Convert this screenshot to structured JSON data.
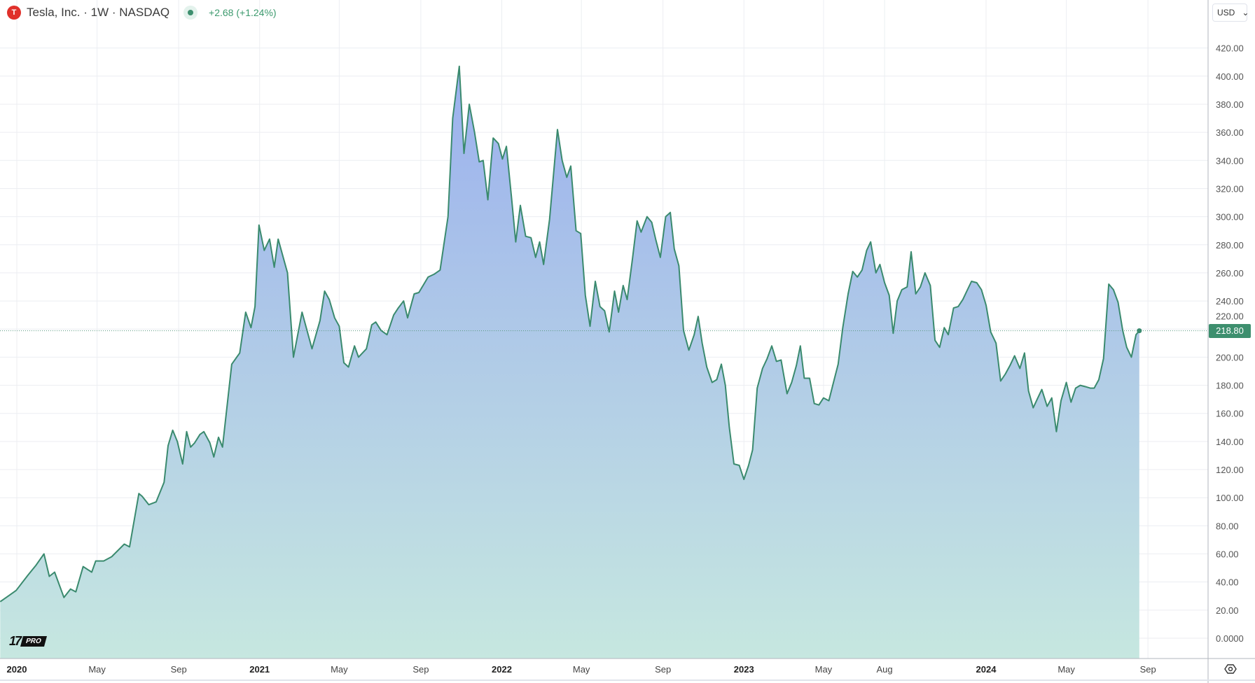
{
  "header": {
    "logo_letter": "T",
    "title": "Tesla, Inc. · 1W · NASDAQ",
    "change": "+2.68 (+1.24%)"
  },
  "currency": {
    "label": "USD",
    "chevron": "⌄"
  },
  "logo": {
    "tv": "17",
    "pro": "PRO"
  },
  "last_price": "218.80",
  "colors": {
    "line": "#3a8a6e",
    "fill_top": "#9bb0ee",
    "fill_bottom": "#c6e7e0",
    "badge": "#3d8f6e",
    "logo": "#e0302a",
    "change": "#3d9a6e"
  },
  "icons": {
    "logo": "tesla-logo-icon",
    "status": "market-status-dot-icon",
    "settings": "settings-icon"
  },
  "chart_data": {
    "type": "area",
    "title": "Tesla, Inc. · 1W · NASDAQ",
    "ylim": [
      -10,
      430
    ],
    "grid": true,
    "legend": "none",
    "y_ticks": [
      "420.00",
      "400.00",
      "380.00",
      "360.00",
      "340.00",
      "320.00",
      "300.00",
      "280.00",
      "260.00",
      "240.00",
      "220.00",
      "200.00",
      "180.00",
      "160.00",
      "140.00",
      "120.00",
      "100.00",
      "80.00",
      "60.00",
      "40.00",
      "20.00",
      "0.0000"
    ],
    "x_ticks": [
      {
        "label": "2020",
        "date": "2020-01-01",
        "bold": true
      },
      {
        "label": "May",
        "date": "2020-05-01"
      },
      {
        "label": "Sep",
        "date": "2020-09-01"
      },
      {
        "label": "2021",
        "date": "2021-01-01",
        "bold": true
      },
      {
        "label": "May",
        "date": "2021-05-01"
      },
      {
        "label": "Sep",
        "date": "2021-09-01"
      },
      {
        "label": "2022",
        "date": "2022-01-01",
        "bold": true
      },
      {
        "label": "May",
        "date": "2022-05-01"
      },
      {
        "label": "Sep",
        "date": "2022-09-01"
      },
      {
        "label": "2023",
        "date": "2023-01-01",
        "bold": true
      },
      {
        "label": "May",
        "date": "2023-05-01"
      },
      {
        "label": "Aug",
        "date": "2023-08-01"
      },
      {
        "label": "2024",
        "date": "2024-01-01",
        "bold": true
      },
      {
        "label": "May",
        "date": "2024-05-01"
      },
      {
        "label": "Sep",
        "date": "2024-09-01"
      }
    ],
    "series": [
      {
        "points": [
          [
            "2019-12-07",
            26
          ],
          [
            "2019-12-19",
            30
          ],
          [
            "2019-12-31",
            34
          ],
          [
            "2020-01-18",
            45
          ],
          [
            "2020-01-30",
            52
          ],
          [
            "2020-02-11",
            60
          ],
          [
            "2020-02-19",
            44
          ],
          [
            "2020-02-27",
            47
          ],
          [
            "2020-03-12",
            29
          ],
          [
            "2020-03-22",
            35
          ],
          [
            "2020-03-30",
            33
          ],
          [
            "2020-04-10",
            51
          ],
          [
            "2020-04-23",
            47
          ],
          [
            "2020-04-29",
            55
          ],
          [
            "2020-05-11",
            55
          ],
          [
            "2020-05-23",
            58
          ],
          [
            "2020-06-11",
            67
          ],
          [
            "2020-06-19",
            65
          ],
          [
            "2020-07-03",
            103
          ],
          [
            "2020-07-08",
            101
          ],
          [
            "2020-07-18",
            95
          ],
          [
            "2020-07-29",
            97
          ],
          [
            "2020-08-10",
            111
          ],
          [
            "2020-08-16",
            137
          ],
          [
            "2020-08-23",
            148
          ],
          [
            "2020-08-30",
            140
          ],
          [
            "2020-09-07",
            124
          ],
          [
            "2020-09-13",
            147
          ],
          [
            "2020-09-19",
            136
          ],
          [
            "2020-09-25",
            139
          ],
          [
            "2020-10-03",
            145
          ],
          [
            "2020-10-09",
            147
          ],
          [
            "2020-10-18",
            139
          ],
          [
            "2020-10-24",
            129
          ],
          [
            "2020-10-31",
            143
          ],
          [
            "2020-11-06",
            136
          ],
          [
            "2020-11-20",
            195
          ],
          [
            "2020-12-02",
            203
          ],
          [
            "2020-12-11",
            232
          ],
          [
            "2020-12-19",
            221
          ],
          [
            "2020-12-25",
            236
          ],
          [
            "2020-12-31",
            294
          ],
          [
            "2021-01-08",
            276
          ],
          [
            "2021-01-16",
            284
          ],
          [
            "2021-01-23",
            264
          ],
          [
            "2021-01-29",
            284
          ],
          [
            "2021-02-12",
            260
          ],
          [
            "2021-02-21",
            200
          ],
          [
            "2021-03-06",
            232
          ],
          [
            "2021-03-21",
            206
          ],
          [
            "2021-04-02",
            226
          ],
          [
            "2021-04-09",
            247
          ],
          [
            "2021-04-16",
            241
          ],
          [
            "2021-04-24",
            228
          ],
          [
            "2021-05-01",
            222
          ],
          [
            "2021-05-08",
            196
          ],
          [
            "2021-05-15",
            193
          ],
          [
            "2021-05-24",
            208
          ],
          [
            "2021-05-30",
            200
          ],
          [
            "2021-06-11",
            206
          ],
          [
            "2021-06-19",
            223
          ],
          [
            "2021-06-25",
            225
          ],
          [
            "2021-07-03",
            219
          ],
          [
            "2021-07-12",
            216
          ],
          [
            "2021-07-22",
            230
          ],
          [
            "2021-07-29",
            235
          ],
          [
            "2021-08-06",
            240
          ],
          [
            "2021-08-12",
            228
          ],
          [
            "2021-08-22",
            245
          ],
          [
            "2021-08-29",
            246
          ],
          [
            "2021-09-12",
            257
          ],
          [
            "2021-09-21",
            259
          ],
          [
            "2021-09-30",
            262
          ],
          [
            "2021-10-12",
            300
          ],
          [
            "2021-10-19",
            370
          ],
          [
            "2021-10-29",
            407
          ],
          [
            "2021-11-05",
            345
          ],
          [
            "2021-11-13",
            380
          ],
          [
            "2021-11-21",
            360
          ],
          [
            "2021-11-28",
            339
          ],
          [
            "2021-12-04",
            340
          ],
          [
            "2021-12-11",
            312
          ],
          [
            "2021-12-19",
            356
          ],
          [
            "2021-12-27",
            352
          ],
          [
            "2022-01-02",
            341
          ],
          [
            "2022-01-08",
            350
          ],
          [
            "2022-01-16",
            312
          ],
          [
            "2022-01-22",
            282
          ],
          [
            "2022-01-29",
            308
          ],
          [
            "2022-02-06",
            286
          ],
          [
            "2022-02-14",
            285
          ],
          [
            "2022-02-21",
            271
          ],
          [
            "2022-02-27",
            282
          ],
          [
            "2022-03-05",
            266
          ],
          [
            "2022-03-14",
            298
          ],
          [
            "2022-03-26",
            362
          ],
          [
            "2022-04-02",
            340
          ],
          [
            "2022-04-09",
            328
          ],
          [
            "2022-04-15",
            336
          ],
          [
            "2022-04-23",
            290
          ],
          [
            "2022-04-30",
            288
          ],
          [
            "2022-05-07",
            244
          ],
          [
            "2022-05-14",
            222
          ],
          [
            "2022-05-22",
            254
          ],
          [
            "2022-05-29",
            236
          ],
          [
            "2022-06-05",
            233
          ],
          [
            "2022-06-12",
            218
          ],
          [
            "2022-06-20",
            247
          ],
          [
            "2022-06-26",
            232
          ],
          [
            "2022-07-03",
            251
          ],
          [
            "2022-07-09",
            241
          ],
          [
            "2022-07-17",
            270
          ],
          [
            "2022-07-24",
            297
          ],
          [
            "2022-07-30",
            289
          ],
          [
            "2022-08-08",
            300
          ],
          [
            "2022-08-15",
            296
          ],
          [
            "2022-08-21",
            284
          ],
          [
            "2022-08-28",
            271
          ],
          [
            "2022-09-05",
            300
          ],
          [
            "2022-09-12",
            303
          ],
          [
            "2022-09-18",
            277
          ],
          [
            "2022-09-25",
            265
          ],
          [
            "2022-10-02",
            219
          ],
          [
            "2022-10-10",
            205
          ],
          [
            "2022-10-18",
            216
          ],
          [
            "2022-10-24",
            229
          ],
          [
            "2022-10-30",
            210
          ],
          [
            "2022-11-06",
            193
          ],
          [
            "2022-11-14",
            182
          ],
          [
            "2022-11-21",
            184
          ],
          [
            "2022-11-28",
            195
          ],
          [
            "2022-12-04",
            180
          ],
          [
            "2022-12-10",
            150
          ],
          [
            "2022-12-17",
            124
          ],
          [
            "2022-12-25",
            123
          ],
          [
            "2023-01-01",
            113
          ],
          [
            "2023-01-08",
            123
          ],
          [
            "2023-01-14",
            134
          ],
          [
            "2023-01-21",
            178
          ],
          [
            "2023-01-29",
            192
          ],
          [
            "2023-02-05",
            199
          ],
          [
            "2023-02-12",
            208
          ],
          [
            "2023-02-19",
            197
          ],
          [
            "2023-02-26",
            198
          ],
          [
            "2023-03-07",
            174
          ],
          [
            "2023-03-14",
            182
          ],
          [
            "2023-03-21",
            194
          ],
          [
            "2023-03-27",
            208
          ],
          [
            "2023-04-02",
            185
          ],
          [
            "2023-04-10",
            185
          ],
          [
            "2023-04-17",
            167
          ],
          [
            "2023-04-24",
            166
          ],
          [
            "2023-05-01",
            171
          ],
          [
            "2023-05-09",
            169
          ],
          [
            "2023-05-16",
            182
          ],
          [
            "2023-05-23",
            195
          ],
          [
            "2023-05-30",
            221
          ],
          [
            "2023-06-07",
            245
          ],
          [
            "2023-06-14",
            261
          ],
          [
            "2023-06-21",
            257
          ],
          [
            "2023-06-28",
            262
          ],
          [
            "2023-07-05",
            276
          ],
          [
            "2023-07-11",
            282
          ],
          [
            "2023-07-19",
            260
          ],
          [
            "2023-07-25",
            266
          ],
          [
            "2023-08-01",
            253
          ],
          [
            "2023-08-08",
            244
          ],
          [
            "2023-08-14",
            217
          ],
          [
            "2023-08-20",
            240
          ],
          [
            "2023-08-27",
            248
          ],
          [
            "2023-09-04",
            250
          ],
          [
            "2023-09-10",
            275
          ],
          [
            "2023-09-17",
            245
          ],
          [
            "2023-09-24",
            250
          ],
          [
            "2023-10-01",
            260
          ],
          [
            "2023-10-09",
            251
          ],
          [
            "2023-10-16",
            212
          ],
          [
            "2023-10-23",
            207
          ],
          [
            "2023-10-30",
            221
          ],
          [
            "2023-11-05",
            216
          ],
          [
            "2023-11-13",
            235
          ],
          [
            "2023-11-20",
            236
          ],
          [
            "2023-11-27",
            241
          ],
          [
            "2023-12-03",
            247
          ],
          [
            "2023-12-10",
            254
          ],
          [
            "2023-12-18",
            253
          ],
          [
            "2023-12-25",
            248
          ],
          [
            "2024-01-01",
            237
          ],
          [
            "2024-01-08",
            218
          ],
          [
            "2024-01-16",
            210
          ],
          [
            "2024-01-23",
            183
          ],
          [
            "2024-01-30",
            188
          ],
          [
            "2024-02-06",
            194
          ],
          [
            "2024-02-13",
            201
          ],
          [
            "2024-02-21",
            192
          ],
          [
            "2024-02-28",
            203
          ],
          [
            "2024-03-05",
            176
          ],
          [
            "2024-03-12",
            164
          ],
          [
            "2024-03-19",
            171
          ],
          [
            "2024-03-25",
            177
          ],
          [
            "2024-04-02",
            165
          ],
          [
            "2024-04-09",
            171
          ],
          [
            "2024-04-16",
            147
          ],
          [
            "2024-04-23",
            169
          ],
          [
            "2024-05-01",
            182
          ],
          [
            "2024-05-08",
            168
          ],
          [
            "2024-05-15",
            178
          ],
          [
            "2024-05-22",
            180
          ],
          [
            "2024-05-30",
            179
          ],
          [
            "2024-06-06",
            178
          ],
          [
            "2024-06-12",
            178
          ],
          [
            "2024-06-19",
            184
          ],
          [
            "2024-06-26",
            199
          ],
          [
            "2024-07-04",
            252
          ],
          [
            "2024-07-11",
            248
          ],
          [
            "2024-07-18",
            239
          ],
          [
            "2024-07-25",
            219
          ],
          [
            "2024-07-31",
            207
          ],
          [
            "2024-08-07",
            200
          ],
          [
            "2024-08-14",
            216
          ],
          [
            "2024-08-19",
            218.8
          ]
        ]
      }
    ]
  }
}
